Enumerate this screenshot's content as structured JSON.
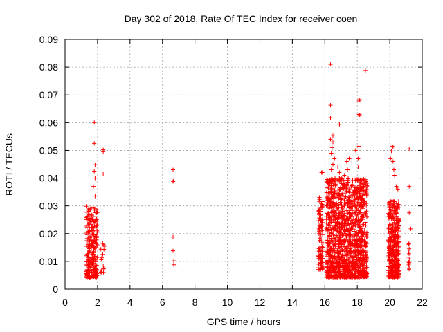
{
  "chart_data": {
    "type": "scatter",
    "title": "Day 302 of 2018, Rate Of TEC Index for receiver coen",
    "xlabel": "GPS time / hours",
    "ylabel": "ROTI / TECUs",
    "xlim": [
      0,
      22
    ],
    "ylim": [
      0,
      0.09
    ],
    "x_ticks": [
      "0",
      "2",
      "4",
      "6",
      "8",
      "10",
      "12",
      "14",
      "16",
      "18",
      "20",
      "22"
    ],
    "y_ticks": [
      "0",
      "0.01",
      "0.02",
      "0.03",
      "0.04",
      "0.05",
      "0.06",
      "0.07",
      "0.08",
      "0.09"
    ],
    "grid": true,
    "marker": "+",
    "color": "#ff0000",
    "clusters": [
      {
        "x_range": [
          1.3,
          1.55
        ],
        "y_range": [
          0.004,
          0.031
        ],
        "count": 120
      },
      {
        "x_range": [
          1.6,
          2.0
        ],
        "y_range": [
          0.004,
          0.03
        ],
        "count": 140
      },
      {
        "x_range": [
          2.2,
          2.45
        ],
        "y_range": [
          0.006,
          0.019
        ],
        "count": 14
      },
      {
        "x_range": [
          15.6,
          15.9
        ],
        "y_range": [
          0.007,
          0.034
        ],
        "count": 110
      },
      {
        "x_range": [
          16.1,
          18.6
        ],
        "y_range": [
          0.004,
          0.04
        ],
        "count": 1400
      },
      {
        "x_range": [
          19.9,
          20.6
        ],
        "y_range": [
          0.004,
          0.032
        ],
        "count": 420
      },
      {
        "x_range": [
          21.1,
          21.3
        ],
        "y_range": [
          0.007,
          0.023
        ],
        "count": 10
      }
    ],
    "points": [
      [
        1.8,
        0.06
      ],
      [
        1.8,
        0.0525
      ],
      [
        1.85,
        0.0448
      ],
      [
        1.8,
        0.0425
      ],
      [
        1.75,
        0.037
      ],
      [
        1.85,
        0.0335
      ],
      [
        1.85,
        0.04
      ],
      [
        2.35,
        0.0502
      ],
      [
        2.35,
        0.0495
      ],
      [
        2.35,
        0.0415
      ],
      [
        6.65,
        0.043
      ],
      [
        6.65,
        0.0388
      ],
      [
        6.7,
        0.039
      ],
      [
        6.65,
        0.0188
      ],
      [
        6.65,
        0.0138
      ],
      [
        6.7,
        0.0102
      ],
      [
        6.7,
        0.0088
      ],
      [
        15.8,
        0.042
      ],
      [
        15.85,
        0.042
      ],
      [
        16.35,
        0.081
      ],
      [
        16.35,
        0.0663
      ],
      [
        16.35,
        0.0618
      ],
      [
        16.9,
        0.0594
      ],
      [
        16.5,
        0.0553
      ],
      [
        16.35,
        0.054
      ],
      [
        16.5,
        0.053
      ],
      [
        16.45,
        0.051
      ],
      [
        16.4,
        0.049
      ],
      [
        16.6,
        0.047
      ],
      [
        16.5,
        0.045
      ],
      [
        16.4,
        0.043
      ],
      [
        16.8,
        0.044
      ],
      [
        16.9,
        0.042
      ],
      [
        17.2,
        0.041
      ],
      [
        17.35,
        0.046
      ],
      [
        17.4,
        0.043
      ],
      [
        17.5,
        0.047
      ],
      [
        17.8,
        0.048
      ],
      [
        17.9,
        0.05
      ],
      [
        18.1,
        0.0678
      ],
      [
        18.15,
        0.0683
      ],
      [
        18.1,
        0.063
      ],
      [
        18.15,
        0.0628
      ],
      [
        18.1,
        0.0515
      ],
      [
        18.1,
        0.0505
      ],
      [
        18.05,
        0.047
      ],
      [
        18.05,
        0.044
      ],
      [
        18.5,
        0.0788
      ],
      [
        20.15,
        0.0515
      ],
      [
        20.2,
        0.0512
      ],
      [
        20.1,
        0.0498
      ],
      [
        20.05,
        0.047
      ],
      [
        20.2,
        0.046
      ],
      [
        20.25,
        0.043
      ],
      [
        20.3,
        0.041
      ],
      [
        20.4,
        0.037
      ],
      [
        20.5,
        0.036
      ],
      [
        21.2,
        0.0505
      ],
      [
        21.2,
        0.037
      ],
      [
        21.2,
        0.0275
      ],
      [
        21.2,
        0.0145
      ],
      [
        21.2,
        0.0095
      ],
      [
        21.2,
        0.0075
      ]
    ]
  }
}
